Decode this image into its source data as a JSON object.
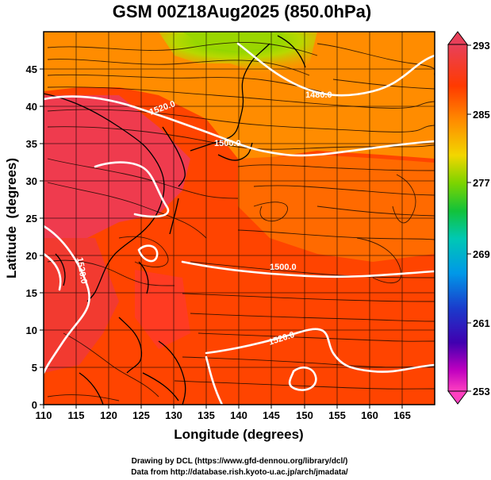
{
  "title": "GSM 00Z18Aug2025 (850.0hPa)",
  "xlabel": "Longitude (degrees)",
  "ylabel": "Latitude  (degrees)",
  "credits": [
    "Drawing by DCL (https://www.gfd-dennou.org/library/dcl/)",
    "Data from http://database.rish.kyoto-u.ac.jp/arch/jmadata/"
  ],
  "map": {
    "lon_range": [
      110,
      170
    ],
    "lat_range": [
      0,
      50
    ],
    "x_ticks": [
      110,
      115,
      120,
      125,
      130,
      135,
      140,
      145,
      150,
      155,
      160,
      165
    ],
    "y_ticks": [
      0,
      5,
      10,
      15,
      20,
      25,
      30,
      35,
      40,
      45
    ],
    "grid": true
  },
  "colorbar": {
    "ticks": [
      293,
      285,
      277,
      269,
      261,
      253
    ],
    "colors": [
      "#e8405a",
      "#ff3a00",
      "#ff9a00",
      "#f2d600",
      "#7cd400",
      "#12c23a",
      "#00c8b4",
      "#0098e8",
      "#1a3ccc",
      "#4000b0",
      "#c000c0",
      "#ff40c0"
    ]
  },
  "contour_labels": [
    {
      "text": "1520.0",
      "lon": 125,
      "lat": 38.5
    },
    {
      "text": "1500.0",
      "lon": 140,
      "lat": 34
    },
    {
      "text": "1480.0",
      "lon": 150,
      "lat": 40.5
    },
    {
      "text": "1520.0",
      "lon": 116,
      "lat": 19
    },
    {
      "text": "1500.0",
      "lon": 147,
      "lat": 19
    },
    {
      "text": "1520.0",
      "lon": 147,
      "lat": 8
    }
  ]
}
